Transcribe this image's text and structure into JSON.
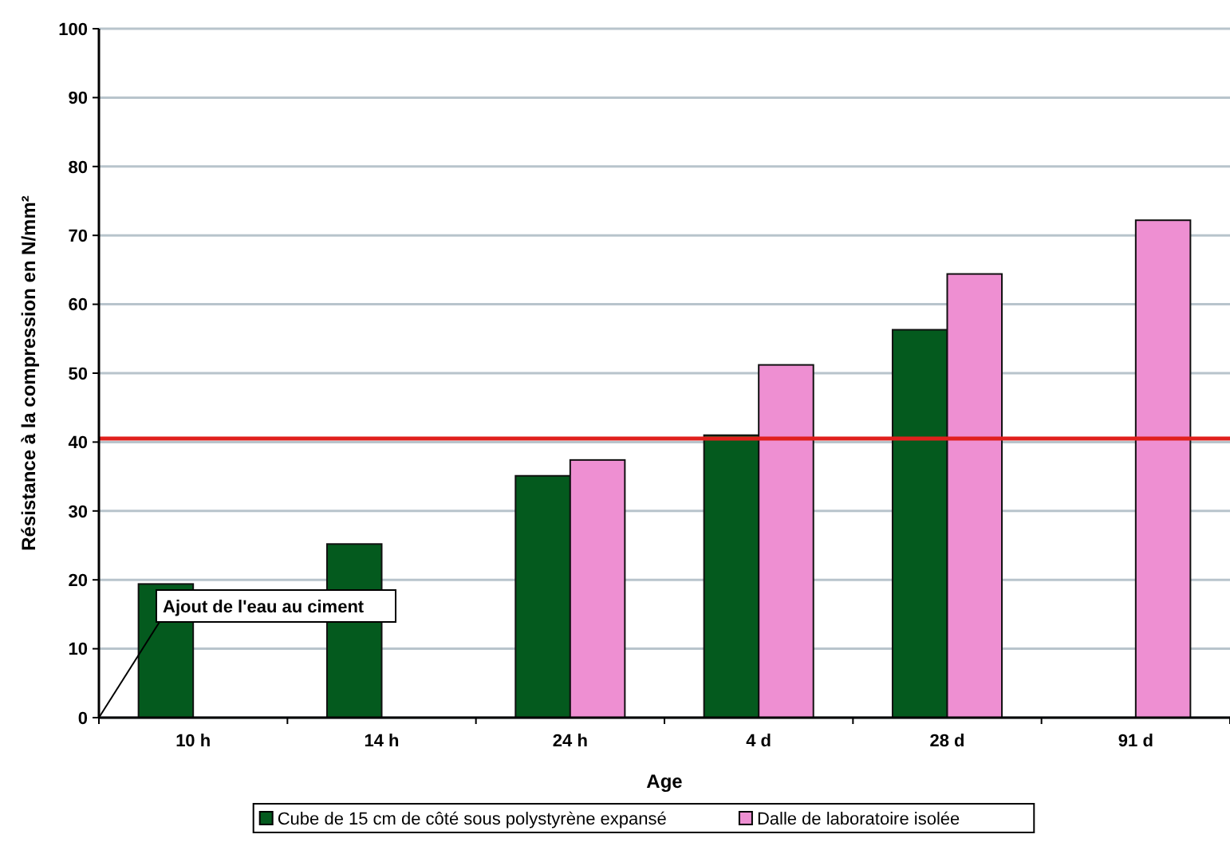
{
  "chart_data": {
    "type": "bar",
    "xlabel": "Age",
    "ylabel": "Résistance à la compression en N/mm²",
    "categories": [
      "10 h",
      "14 h",
      "24 h",
      "4 d",
      "28 d",
      "91 d"
    ],
    "series": [
      {
        "name": "Cube de 15 cm de côté sous polystyrène expansé",
        "color": "#045a1e",
        "values": [
          19.4,
          25.2,
          35.1,
          41.0,
          56.3,
          null
        ]
      },
      {
        "name": "Dalle de laboratoire isolée",
        "color": "#ee8fd2",
        "values": [
          null,
          null,
          37.4,
          51.2,
          64.4,
          72.2
        ]
      }
    ],
    "ylim": [
      0,
      100
    ],
    "yticks": [
      0,
      10,
      20,
      30,
      40,
      50,
      60,
      70,
      80,
      90,
      100
    ],
    "grid": "y",
    "legend": "bottom",
    "ref_lines": [
      {
        "axis": "y",
        "value": 40.5,
        "color": "#e0201c"
      }
    ],
    "annotations": [
      "Ajout de l'eau au ciment"
    ]
  }
}
